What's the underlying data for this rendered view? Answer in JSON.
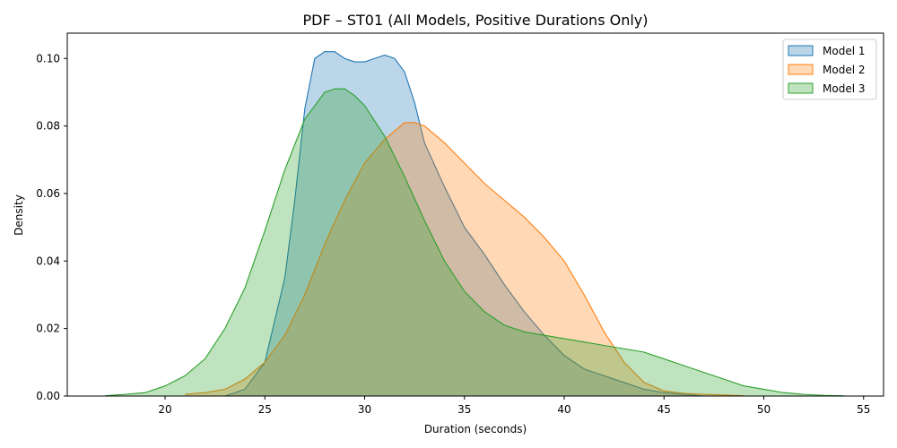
{
  "chart_data": {
    "type": "area",
    "title": "PDF – ST01 (All Models, Positive Durations Only)",
    "xlabel": "Duration (seconds)",
    "ylabel": "Density",
    "xlim": [
      15.1,
      56.0
    ],
    "ylim": [
      0,
      0.1075
    ],
    "xticks": [
      20,
      25,
      30,
      35,
      40,
      45,
      50,
      55
    ],
    "xtick_labels": [
      "20",
      "25",
      "30",
      "35",
      "40",
      "45",
      "50",
      "55"
    ],
    "yticks": [
      0,
      0.02,
      0.04,
      0.06,
      0.08,
      0.1
    ],
    "ytick_labels": [
      "0.00",
      "0.02",
      "0.04",
      "0.06",
      "0.08",
      "0.10"
    ],
    "grid": false,
    "legend_position": "top-right",
    "series": [
      {
        "name": "Model 1",
        "line_color": "#1f77b4",
        "fill_color": "#1f77b4",
        "fill_opacity": 0.3,
        "x": [
          23.0,
          24.0,
          25.0,
          26.0,
          26.5,
          27.0,
          27.5,
          28.0,
          28.5,
          29.0,
          29.5,
          30.0,
          30.5,
          31.0,
          31.5,
          32.0,
          32.5,
          33.0,
          34.0,
          35.0,
          36.0,
          37.0,
          38.0,
          39.0,
          40.0,
          41.0,
          42.0,
          43.0,
          44.0,
          45.0,
          46.0,
          47.0
        ],
        "y": [
          0.0,
          0.002,
          0.01,
          0.035,
          0.058,
          0.085,
          0.1,
          0.102,
          0.102,
          0.1,
          0.099,
          0.099,
          0.1,
          0.101,
          0.1,
          0.096,
          0.087,
          0.075,
          0.062,
          0.05,
          0.042,
          0.033,
          0.025,
          0.018,
          0.012,
          0.008,
          0.006,
          0.004,
          0.002,
          0.001,
          0.0005,
          0.0
        ]
      },
      {
        "name": "Model 2",
        "line_color": "#ff7f0e",
        "fill_color": "#ff7f0e",
        "fill_opacity": 0.3,
        "x": [
          21.0,
          22.0,
          23.0,
          24.0,
          25.0,
          26.0,
          27.0,
          28.0,
          29.0,
          30.0,
          31.0,
          32.0,
          32.5,
          33.0,
          34.0,
          35.0,
          36.0,
          37.0,
          38.0,
          39.0,
          40.0,
          41.0,
          42.0,
          43.0,
          44.0,
          45.0,
          46.0,
          47.0,
          48.0,
          49.0
        ],
        "y": [
          0.0005,
          0.001,
          0.002,
          0.005,
          0.01,
          0.018,
          0.03,
          0.045,
          0.058,
          0.069,
          0.076,
          0.081,
          0.081,
          0.08,
          0.075,
          0.069,
          0.063,
          0.058,
          0.053,
          0.047,
          0.04,
          0.03,
          0.019,
          0.01,
          0.004,
          0.0015,
          0.0008,
          0.0005,
          0.0003,
          0.0001
        ]
      },
      {
        "name": "Model 3",
        "line_color": "#2ca02c",
        "fill_color": "#2ca02c",
        "fill_opacity": 0.3,
        "x": [
          17.0,
          18.0,
          19.0,
          20.0,
          21.0,
          22.0,
          23.0,
          24.0,
          25.0,
          26.0,
          27.0,
          28.0,
          28.5,
          29.0,
          29.5,
          30.0,
          31.0,
          32.0,
          33.0,
          34.0,
          35.0,
          36.0,
          37.0,
          38.0,
          39.0,
          40.0,
          41.0,
          42.0,
          43.0,
          44.0,
          45.0,
          46.0,
          47.0,
          48.0,
          49.0,
          50.0,
          51.0,
          52.0,
          53.0,
          54.0
        ],
        "y": [
          0.0001,
          0.0005,
          0.001,
          0.003,
          0.006,
          0.011,
          0.02,
          0.032,
          0.049,
          0.067,
          0.082,
          0.09,
          0.091,
          0.091,
          0.089,
          0.086,
          0.077,
          0.065,
          0.052,
          0.04,
          0.031,
          0.025,
          0.021,
          0.019,
          0.018,
          0.017,
          0.016,
          0.015,
          0.014,
          0.013,
          0.011,
          0.009,
          0.007,
          0.005,
          0.003,
          0.002,
          0.001,
          0.0005,
          0.0002,
          0.0001
        ]
      }
    ]
  }
}
